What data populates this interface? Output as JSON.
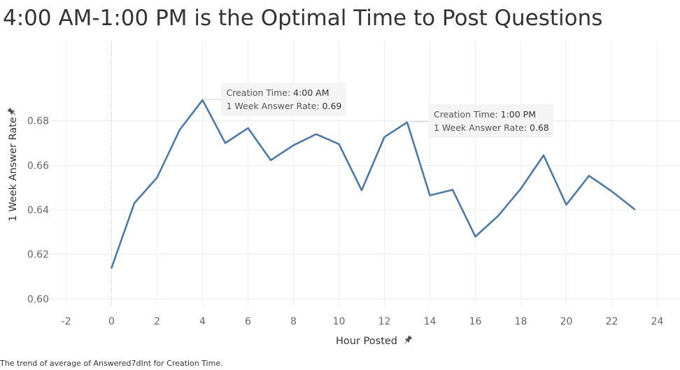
{
  "chart_data": {
    "type": "line",
    "title": "4:00 AM-1:00 PM is the Optimal Time to Post Questions",
    "caption": "The trend of average of Answered7dInt for Creation Time.",
    "xlabel": "Hour Posted",
    "ylabel": "1 Week Answer Rate",
    "xlim": [
      -3,
      25
    ],
    "ylim": [
      0.597,
      0.716
    ],
    "x_ticks": [
      "-2",
      "0",
      "2",
      "4",
      "6",
      "8",
      "10",
      "12",
      "14",
      "16",
      "18",
      "20",
      "22",
      "24"
    ],
    "y_ticks": [
      "0.60",
      "0.62",
      "0.64",
      "0.66",
      "0.68"
    ],
    "series": [
      {
        "color": "#4e79a7",
        "x": [
          0,
          1,
          2,
          3,
          4,
          5,
          6,
          7,
          8,
          9,
          10,
          11,
          12,
          13,
          14,
          15,
          16,
          17,
          18,
          19,
          20,
          21,
          22,
          23
        ],
        "y": [
          0.614,
          0.643,
          0.6545,
          0.676,
          0.6893,
          0.67,
          0.6767,
          0.6623,
          0.669,
          0.674,
          0.6695,
          0.6488,
          0.6727,
          0.6793,
          0.6465,
          0.649,
          0.628,
          0.6373,
          0.6495,
          0.6645,
          0.6423,
          0.6553,
          0.6483,
          0.6403
        ]
      }
    ],
    "grid": true,
    "annotations": [
      {
        "x": 4,
        "y": 0.6893,
        "label1": "Creation Time:",
        "value1": "4:00 AM",
        "label2": "1 Week Answer Rate:",
        "value2": "0.69"
      },
      {
        "x": 13,
        "y": 0.6793,
        "label1": "Creation Time:",
        "value1": "1:00 PM",
        "label2": "1 Week Answer Rate:",
        "value2": "0.68"
      }
    ]
  }
}
